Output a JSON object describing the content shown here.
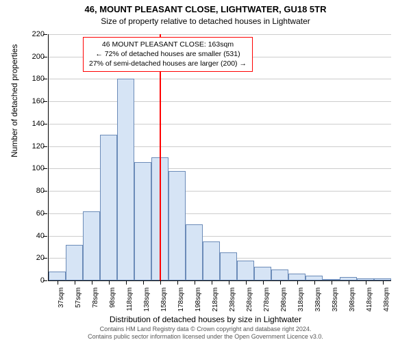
{
  "titles": {
    "main": "46, MOUNT PLEASANT CLOSE, LIGHTWATER, GU18 5TR",
    "sub": "Size of property relative to detached houses in Lightwater"
  },
  "axes": {
    "y_title": "Number of detached properties",
    "x_title": "Distribution of detached houses by size in Lightwater",
    "ylim": [
      0,
      220
    ],
    "y_ticks": [
      0,
      20,
      40,
      60,
      80,
      100,
      120,
      140,
      160,
      180,
      200,
      220
    ],
    "x_labels": [
      "37sqm",
      "57sqm",
      "78sqm",
      "98sqm",
      "118sqm",
      "138sqm",
      "158sqm",
      "178sqm",
      "198sqm",
      "218sqm",
      "238sqm",
      "258sqm",
      "278sqm",
      "298sqm",
      "318sqm",
      "338sqm",
      "358sqm",
      "398sqm",
      "418sqm",
      "438sqm"
    ]
  },
  "chart": {
    "type": "histogram",
    "bar_color": "#d6e4f5",
    "bar_border_color": "#6b8bb8",
    "grid_color": "#cccccc",
    "background_color": "#ffffff",
    "values": [
      8,
      32,
      62,
      130,
      180,
      106,
      110,
      98,
      50,
      35,
      25,
      18,
      12,
      10,
      6,
      4,
      0,
      3,
      2,
      2
    ],
    "marker_line": {
      "color": "#ff0000",
      "x_value": 163,
      "x_domain": [
        27,
        448
      ]
    }
  },
  "info_box": {
    "line1": "46 MOUNT PLEASANT CLOSE: 163sqm",
    "line2": "← 72% of detached houses are smaller (531)",
    "line3": "27% of semi-detached houses are larger (200) →",
    "border_color": "#ff0000"
  },
  "footer": {
    "line1": "Contains HM Land Registry data © Crown copyright and database right 2024.",
    "line2": "Contains public sector information licensed under the Open Government Licence v3.0."
  },
  "typography": {
    "title_fontsize": 13,
    "subtitle_fontsize": 12,
    "axis_label_fontsize": 11,
    "tick_label_fontsize": 10,
    "footer_fontsize": 9
  }
}
